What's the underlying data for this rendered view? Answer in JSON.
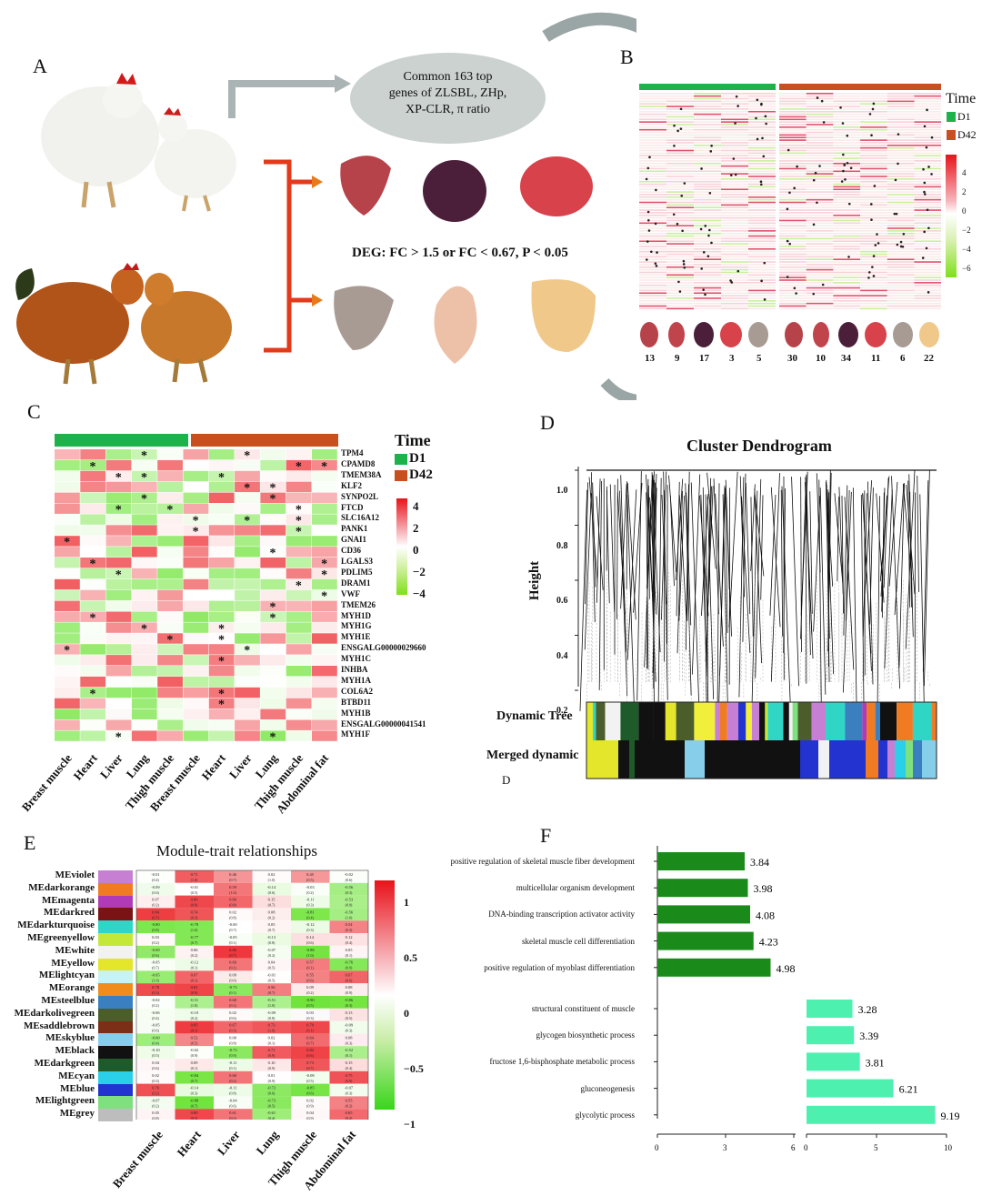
{
  "panels": {
    "A": "A",
    "B": "B",
    "C": "C",
    "D": "D",
    "E": "E",
    "F": "F"
  },
  "panelA": {
    "ellipse_text": [
      "Common 163 top",
      "genes of ZLSBL, ZHp,",
      "XP-CLR, π ratio"
    ],
    "deg_text": "DEG: FC > 1.5 or FC < 0.67, P < 0.05"
  },
  "panelB": {
    "legend_title": "Time",
    "legend_items": [
      "D1",
      "D42"
    ],
    "legend_colors": [
      "#1db34a",
      "#c8501e"
    ],
    "scale_ticks": [
      "4",
      "2",
      "0",
      "−2",
      "−4",
      "−6"
    ],
    "counts": [
      "13",
      "9",
      "17",
      "3",
      "5",
      "30",
      "10",
      "34",
      "11",
      "6",
      "22"
    ]
  },
  "panelC": {
    "legend_title": "Time",
    "legend_items": [
      "D1",
      "D42"
    ],
    "scale_ticks": [
      "4",
      "2",
      "0",
      "−2",
      "−4"
    ],
    "genes": [
      "TPM4",
      "CPAMD8",
      "TMEM38A",
      "KLF2",
      "SYNPO2L",
      "FTCD",
      "SLC16A12",
      "PANK1",
      "GNAI1",
      "CD36",
      "LGALS3",
      "PDLIM5",
      "DRAM1",
      "VWF",
      "TMEM26",
      "MYH1D",
      "MYH1G",
      "MYH1E",
      "ENSGALG00000029660",
      "MYH1C",
      "INHBA",
      "MYH1A",
      "COL6A2",
      "BTBD11",
      "MYH1B",
      "ENSGALG00000041541",
      "MYH1F"
    ],
    "tissues": [
      "Breast muscle",
      "Heart",
      "Liver",
      "Lung",
      "Thigh muscle",
      "Breast muscle",
      "Heart",
      "Liver",
      "Lung",
      "Thigh muscle",
      "Abdominal fat"
    ]
  },
  "panelD": {
    "title": "Cluster Dendrogram",
    "ylabel": "Height",
    "yticks": [
      "1.0",
      "0.8",
      "0.6",
      "0.4",
      "0.2"
    ],
    "row1": "Dynamic Tree",
    "row2": "Merged dynamic",
    "footer": "D"
  },
  "panelE": {
    "title": "Module-trait relationships",
    "modules": [
      "MEviolet",
      "MEdarkorange",
      "MEmagenta",
      "MEdarkred",
      "MEdarkturquoise",
      "MEgreenyellow",
      "MEwhite",
      "MEyellow",
      "MElightcyan",
      "MEorange",
      "MEsteelblue",
      "MEdarkolivegreen",
      "MEsaddlebrown",
      "MEskyblue",
      "MEblack",
      "MEdarkgreen",
      "MEcyan",
      "MEblue",
      "MElightgreen",
      "MEgrey"
    ],
    "module_colors": [
      "#c77fd4",
      "#f07b23",
      "#b13ab8",
      "#7a1414",
      "#2fd6c6",
      "#c4e83a",
      "#f2f2f2",
      "#e3e62a",
      "#c9f2f2",
      "#f08c1c",
      "#3a7fc0",
      "#4a5d2a",
      "#7b2f16",
      "#87ceeb",
      "#111111",
      "#1f5a2a",
      "#29d0e8",
      "#2233d0",
      "#7fe07f",
      "#bdbdbd"
    ],
    "traits": [
      "Breast muscle",
      "Heart",
      "Liver",
      "Lung",
      "Thigh muscle",
      "Abdominal fat"
    ],
    "scale_ticks": [
      "1",
      "0.5",
      "0",
      "−0.5",
      "−1"
    ]
  },
  "panelF": {
    "chart_data": [
      {
        "type": "bar",
        "categories": [
          "positive regulation of skeletal muscle fiber development",
          "multicellular organism development",
          "DNA-binding transcription activator activity",
          "skeletal muscle cell differentiation",
          "positive regulation of myoblast differentiation"
        ],
        "values": [
          3.84,
          3.98,
          4.08,
          4.23,
          4.98
        ],
        "xticks": [
          "0",
          "3",
          "6"
        ],
        "xlim": [
          0,
          6
        ],
        "color": "#1a8a1a"
      },
      {
        "type": "bar",
        "categories": [
          "structural constituent of muscle",
          "glycogen biosynthetic process",
          "fructose 1,6-bisphosphate metabolic process",
          "gluconeogenesis",
          "glycolytic process"
        ],
        "values": [
          3.28,
          3.39,
          3.81,
          6.21,
          9.19
        ],
        "xticks": [
          "0",
          "5",
          "10"
        ],
        "xlim": [
          0,
          10
        ],
        "color": "#4ef0b0"
      }
    ]
  }
}
